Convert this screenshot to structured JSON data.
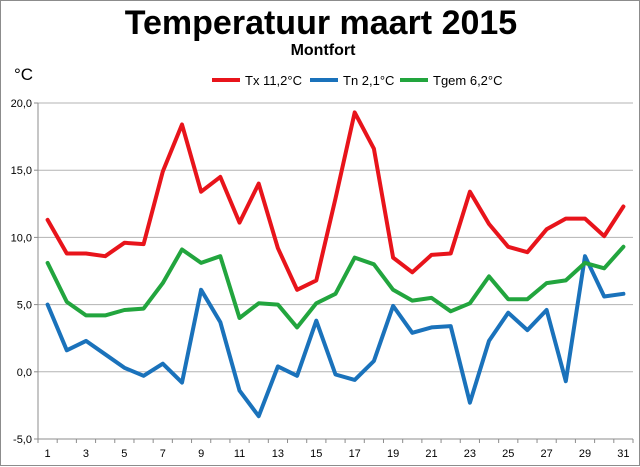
{
  "chart_data": {
    "type": "line",
    "title": "Temperatuur maart 2015",
    "subtitle": "Montfort",
    "ylabel": "°C",
    "xlabel": "",
    "ylim": [
      -5,
      20
    ],
    "yticks": [
      "20,0",
      "15,0",
      "10,0",
      "5,0",
      "0,0",
      "-5,0"
    ],
    "ytick_values": [
      20,
      15,
      10,
      5,
      0,
      -5
    ],
    "x": [
      1,
      2,
      3,
      4,
      5,
      6,
      7,
      8,
      9,
      10,
      11,
      12,
      13,
      14,
      15,
      16,
      17,
      18,
      19,
      20,
      21,
      22,
      23,
      24,
      25,
      26,
      27,
      28,
      29,
      30,
      31
    ],
    "xticks": [
      "1",
      "3",
      "5",
      "7",
      "9",
      "11",
      "13",
      "15",
      "17",
      "19",
      "21",
      "23",
      "25",
      "27",
      "29",
      "31"
    ],
    "xtick_values": [
      1,
      3,
      5,
      7,
      9,
      11,
      13,
      15,
      17,
      19,
      21,
      23,
      25,
      27,
      29,
      31
    ],
    "grid": "horizontal",
    "legend_position": "top",
    "series": [
      {
        "name": "Tx 11,2°C",
        "color": "#e8141b",
        "values": [
          11.3,
          8.8,
          8.8,
          8.6,
          9.6,
          9.5,
          14.9,
          18.4,
          13.4,
          14.5,
          11.1,
          14.0,
          9.2,
          6.1,
          6.8,
          12.9,
          19.3,
          16.6,
          8.5,
          7.4,
          8.7,
          8.8,
          13.4,
          11.0,
          9.3,
          8.9,
          10.6,
          11.4,
          11.4,
          10.1,
          12.3
        ]
      },
      {
        "name": "Tn 2,1°C",
        "color": "#1a72bb",
        "values": [
          5.0,
          1.6,
          2.3,
          1.3,
          0.3,
          -0.3,
          0.6,
          -0.8,
          6.1,
          3.7,
          -1.4,
          -3.3,
          0.4,
          -0.3,
          3.8,
          -0.2,
          -0.6,
          0.8,
          4.9,
          2.9,
          3.3,
          3.4,
          -2.3,
          2.3,
          4.4,
          3.1,
          4.6,
          -0.7,
          8.6,
          5.6,
          5.8
        ]
      },
      {
        "name": "Tgem 6,2°C",
        "color": "#22a53e",
        "values": [
          8.1,
          5.2,
          4.2,
          4.2,
          4.6,
          4.7,
          6.6,
          9.1,
          8.1,
          8.6,
          4.0,
          5.1,
          5.0,
          3.3,
          5.1,
          5.8,
          8.5,
          8.0,
          6.1,
          5.3,
          5.5,
          4.5,
          5.1,
          7.1,
          5.4,
          5.4,
          6.6,
          6.8,
          8.1,
          7.7,
          9.3
        ]
      }
    ]
  }
}
